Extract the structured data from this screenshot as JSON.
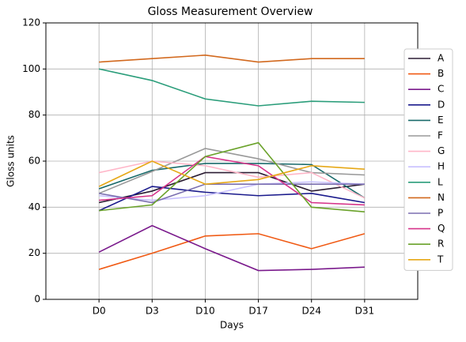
{
  "chart_data": {
    "type": "line",
    "title": "Gloss Measurement Overview",
    "xlabel": "Days",
    "ylabel": "Gloss units",
    "categories": [
      "D0",
      "D3",
      "D10",
      "D17",
      "D24",
      "D31"
    ],
    "ylim": [
      0,
      120
    ],
    "yticks": [
      0,
      20,
      40,
      60,
      80,
      100,
      120
    ],
    "grid": true,
    "legend": "right",
    "series": [
      {
        "name": "A",
        "color": "#2b1d33",
        "values": [
          42,
          47,
          55,
          55,
          47,
          50
        ]
      },
      {
        "name": "B",
        "color": "#f05a14",
        "values": [
          13,
          20,
          27.5,
          28.5,
          22,
          28.5
        ]
      },
      {
        "name": "C",
        "color": "#7a1a8c",
        "values": [
          20.5,
          32,
          22,
          12.5,
          13,
          14
        ]
      },
      {
        "name": "D",
        "color": "#1a1a8c",
        "values": [
          38.5,
          49,
          46.5,
          45,
          46,
          42
        ]
      },
      {
        "name": "E",
        "color": "#1a6b6b",
        "values": [
          48,
          56,
          59,
          59,
          58.5,
          44
        ]
      },
      {
        "name": "F",
        "color": "#999999",
        "values": [
          46,
          55.5,
          65.5,
          61,
          55,
          54
        ]
      },
      {
        "name": "G",
        "color": "#ffb6c8",
        "values": [
          55,
          60,
          58,
          53,
          55,
          44
        ]
      },
      {
        "name": "H",
        "color": "#c8c0ff",
        "values": [
          45,
          43,
          45,
          50,
          51,
          50
        ]
      },
      {
        "name": "L",
        "color": "#2a9d7a",
        "values": [
          100,
          95,
          87,
          84,
          86,
          85.5
        ]
      },
      {
        "name": "N",
        "color": "#d2691e",
        "values": [
          103,
          104.5,
          106,
          103,
          104.5,
          104.5
        ]
      },
      {
        "name": "P",
        "color": "#7b6fb0",
        "values": [
          46,
          42,
          50,
          50,
          50,
          50
        ]
      },
      {
        "name": "Q",
        "color": "#d6338a",
        "values": [
          43,
          45,
          62,
          58,
          42,
          41
        ]
      },
      {
        "name": "R",
        "color": "#6aa22a",
        "values": [
          38.5,
          41,
          62,
          68,
          40,
          38
        ]
      },
      {
        "name": "T",
        "color": "#e6a817",
        "values": [
          49,
          60,
          50,
          52,
          58,
          56.5
        ]
      }
    ]
  }
}
